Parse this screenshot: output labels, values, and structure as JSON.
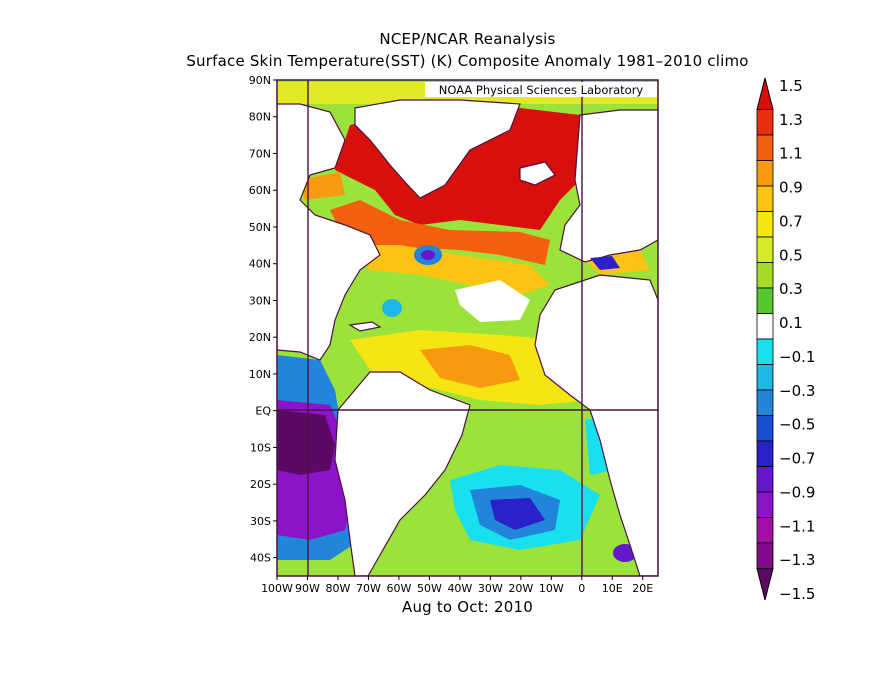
{
  "title_line1": "NCEP/NCAR Reanalysis",
  "title_line2": "Surface Skin Temperature(SST) (K) Composite Anomaly 1981–2010 climo",
  "credit": "NOAA Physical Sciences Laboratory",
  "period_label": "Aug to Oct: 2010",
  "lat_labels": [
    "90N",
    "80N",
    "70N",
    "60N",
    "50N",
    "40N",
    "30N",
    "20N",
    "10N",
    "EQ",
    "10S",
    "20S",
    "30S",
    "40S"
  ],
  "lon_labels": [
    "100W",
    "90W",
    "80W",
    "70W",
    "60W",
    "50W",
    "40W",
    "30W",
    "20W",
    "10W",
    "0",
    "10E",
    "20E"
  ],
  "colorbar": {
    "labels": [
      "1.5",
      "1.3",
      "1.1",
      "0.9",
      "0.7",
      "0.5",
      "0.3",
      "0.1",
      "−0.1",
      "−0.3",
      "−0.5",
      "−0.7",
      "−0.9",
      "−1.1",
      "−1.3",
      "−1.5"
    ],
    "colors": [
      "#d8100c",
      "#e8300e",
      "#f3600f",
      "#f89a10",
      "#fcc314",
      "#f5e613",
      "#d6ea25",
      "#a5dc28",
      "#54c92c",
      "#ffffff",
      "#19e0ee",
      "#1fb7e5",
      "#2185d9",
      "#1750d2",
      "#2a21c8",
      "#6617cc",
      "#8c14c8",
      "#a10fa6",
      "#830a8a",
      "#5a0a65"
    ]
  },
  "map": {
    "extent": {
      "west": -100,
      "east": 25,
      "south": -45,
      "north": 90
    },
    "ocean_color": "#9be33a",
    "land_color": "#ffffff",
    "coast_color": "#4b1240"
  }
}
